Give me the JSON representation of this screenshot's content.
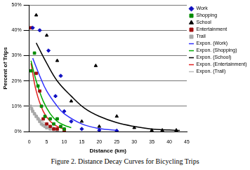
{
  "chart_data": {
    "type": "scatter",
    "caption": "Figure 2.  Distance Decay Curves for Bicycling Trips",
    "x_label": "Distance (km)",
    "y_label": "Percent of Trips",
    "xlim": [
      0,
      45
    ],
    "xticks": [
      0,
      5,
      10,
      15,
      20,
      25,
      30,
      35,
      40,
      45
    ],
    "ylim": [
      0,
      50
    ],
    "yticks": [
      {
        "value": 0,
        "label": "0%"
      },
      {
        "value": 10,
        "label": "10%"
      },
      {
        "value": 20,
        "label": "20%"
      },
      {
        "value": 30,
        "label": "30%"
      },
      {
        "value": 40,
        "label": "40%"
      },
      {
        "value": 50,
        "label": "50%"
      }
    ],
    "grid": "y",
    "legend": "right",
    "series": [
      {
        "name": "Work",
        "type": "scatter",
        "color": "#1010c0",
        "marker": "diamond",
        "x": [
          1,
          3,
          5.5,
          7.5,
          9,
          10,
          12,
          15,
          20,
          25
        ],
        "values": [
          41,
          40,
          32,
          14,
          22,
          8,
          4,
          1,
          0.5,
          0.3
        ]
      },
      {
        "name": "Shopping",
        "type": "scatter",
        "color": "#008a00",
        "marker": "square",
        "x": [
          0.5,
          1.5,
          2.5,
          3.5,
          4.5,
          6,
          7,
          8,
          9,
          10
        ],
        "values": [
          24,
          31,
          18,
          10,
          6,
          5,
          3,
          5,
          2,
          1
        ]
      },
      {
        "name": "School",
        "type": "scatter",
        "color": "#000000",
        "marker": "triangle",
        "x": [
          2,
          5,
          8,
          12,
          15,
          19,
          20,
          25,
          30,
          35,
          38,
          42
        ],
        "values": [
          46,
          38,
          28,
          12,
          4,
          26,
          2,
          6,
          1.5,
          0.5,
          0.5,
          0.5
        ]
      },
      {
        "name": "Entertainment",
        "type": "scatter",
        "color": "#a01010",
        "marker": "square",
        "x": [
          0.5,
          2,
          3,
          4,
          5,
          6,
          7,
          8,
          10
        ],
        "values": [
          41,
          23,
          16,
          5,
          3,
          2,
          1,
          1,
          0.5
        ]
      },
      {
        "name": "Trail",
        "type": "scatter",
        "color": "#a8a8a8",
        "marker": "square",
        "x": [
          0.3,
          0.7,
          1,
          1.5,
          2,
          2.5,
          3,
          3.5,
          4,
          4.5,
          5,
          6,
          7,
          8
        ],
        "values": [
          10,
          9,
          8,
          7,
          6,
          5,
          4,
          3,
          2.5,
          2,
          1.5,
          1,
          0.8,
          0.5
        ]
      },
      {
        "name": "Expon. (Work)",
        "type": "line",
        "color": "#3030ff",
        "marker": "none",
        "line_style": "solid",
        "x": [
          1,
          3,
          5,
          8,
          10,
          15,
          20,
          25
        ],
        "values": [
          29,
          22,
          16,
          10,
          7,
          3,
          1.2,
          0.5
        ]
      },
      {
        "name": "Expon. (Shopping)",
        "type": "line",
        "color": "#00aa00",
        "marker": "none",
        "line_style": "solid",
        "x": [
          0.5,
          2,
          4,
          6,
          8,
          10,
          12
        ],
        "values": [
          28,
          20,
          12,
          7,
          4,
          2.5,
          1.5
        ]
      },
      {
        "name": "Expon. (School)",
        "type": "line",
        "color": "#000000",
        "marker": "none",
        "line_style": "solid",
        "x": [
          2,
          5,
          8,
          12,
          16,
          20,
          25,
          30,
          35,
          40,
          43
        ],
        "values": [
          35,
          27,
          20,
          14,
          9,
          6,
          3.5,
          2,
          1,
          0.6,
          0.4
        ]
      },
      {
        "name": "Expon. (Entertainment)",
        "type": "line",
        "color": "#e02020",
        "marker": "none",
        "line_style": "solid",
        "x": [
          0.5,
          2,
          4,
          6,
          8,
          10
        ],
        "values": [
          27,
          16,
          8,
          4,
          2,
          1
        ]
      },
      {
        "name": "Expon. (Trail)",
        "type": "line",
        "color": "#bbbbbb",
        "marker": "none",
        "line_style": "solid",
        "x": [
          0.3,
          1,
          2,
          3,
          4,
          5,
          6,
          8
        ],
        "values": [
          10,
          8.5,
          6.5,
          5,
          3.8,
          3,
          2.2,
          1.3
        ]
      }
    ]
  }
}
